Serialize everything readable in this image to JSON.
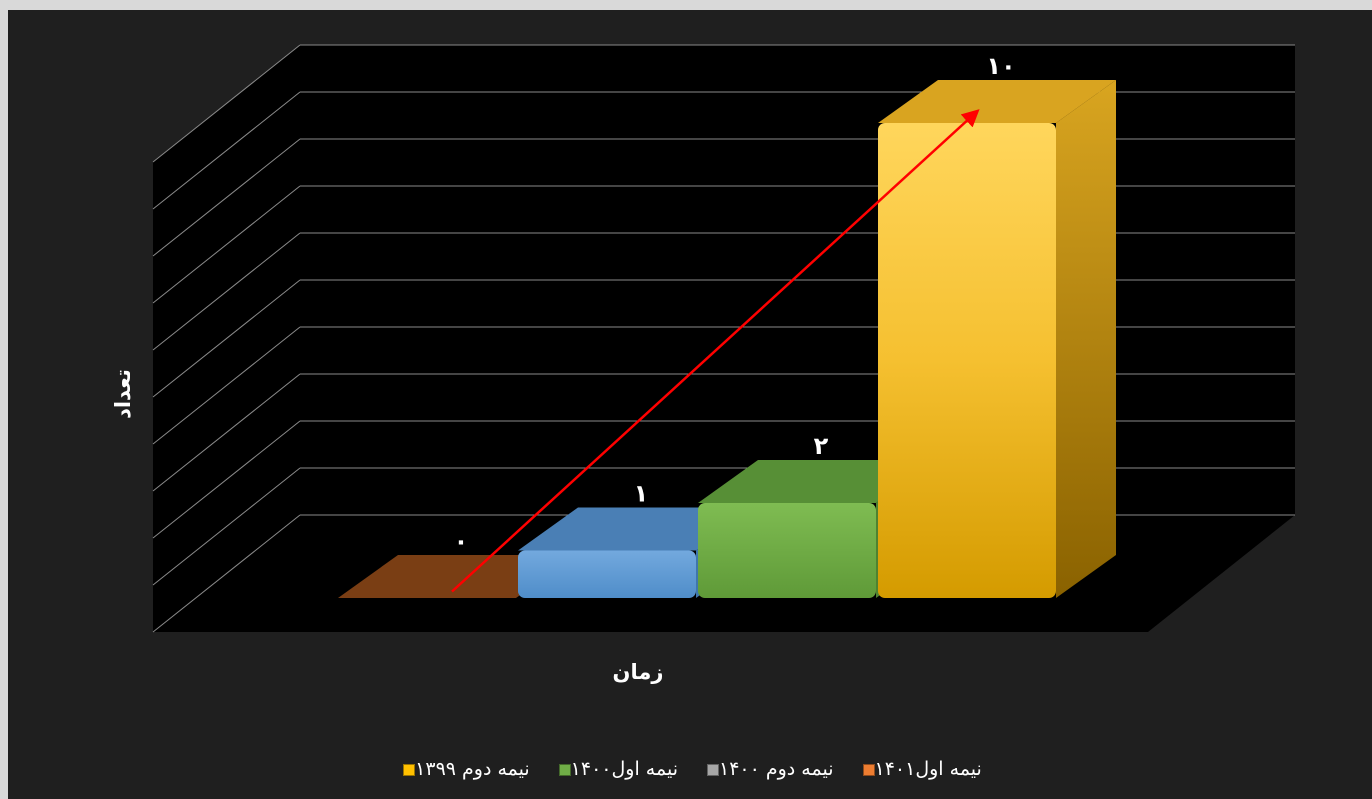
{
  "chart_data": {
    "type": "bar",
    "categories": [
      "نیمه دوم ۱۳۹۹",
      "نیمه اول۱۴۰۰",
      "نیمه دوم ۱۴۰۰",
      "نیمه اول۱۴۰۱"
    ],
    "values": [
      0,
      1,
      2,
      10
    ],
    "data_labels": [
      "۰",
      "۱",
      "۲",
      "۱۰"
    ],
    "xlabel": "زمان",
    "ylabel": "تعداد",
    "ylim": [
      0,
      10
    ],
    "grid": true,
    "legend_position": "bottom",
    "style": "3d-column",
    "trend_arrow": true,
    "colors": [
      "#7a3e14",
      "#5b9bd5",
      "#70ad47",
      "#ffc000"
    ],
    "trend_color": "#ff0000",
    "background": "#1f1f1f"
  }
}
